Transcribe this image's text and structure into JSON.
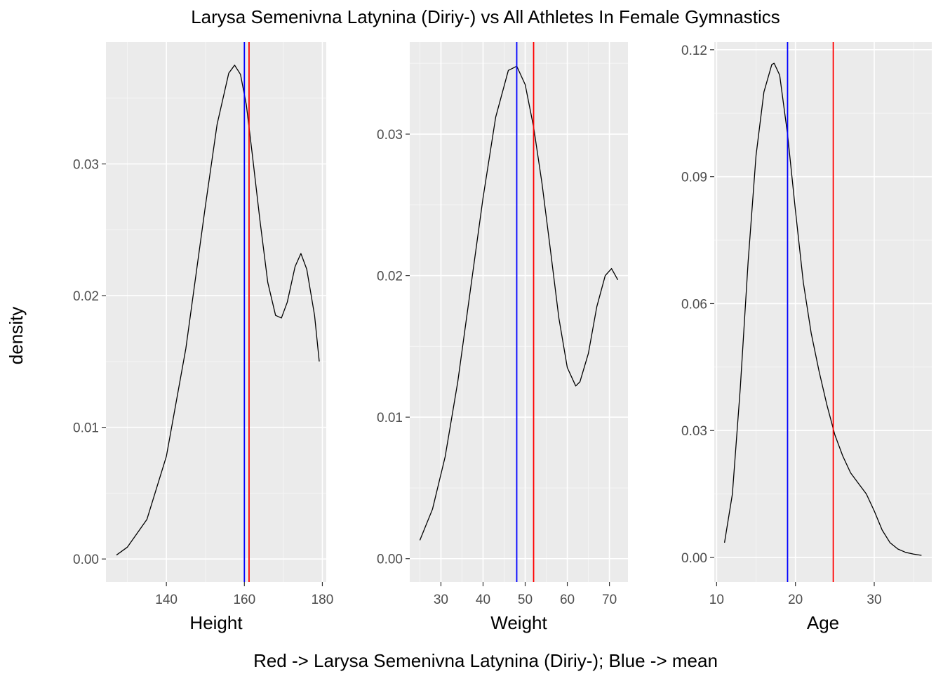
{
  "figure": {
    "title": "Larysa Semenivna Latynina (Diriy-) vs All Athletes In Female Gymnastics",
    "ylabel": "density",
    "caption": "Red -> Larysa Semenivna Latynina (Diriy-); Blue -> mean"
  },
  "colors": {
    "panel_background": "#ebebeb",
    "grid_major": "#ffffff",
    "grid_minor": "#f5f5f5",
    "density_line": "#000000",
    "athlete_line": "#ff0000",
    "mean_line": "#0000ff",
    "tick_text": "#4d4d4d"
  },
  "chart_data": [
    {
      "type": "line",
      "xlabel": "Height",
      "ylabel": "density",
      "xlim": [
        124.5,
        181
      ],
      "ylim": [
        -0.00175,
        0.03925
      ],
      "xticks": [
        140,
        160,
        180
      ],
      "yticks": [
        0,
        0.01,
        0.02,
        0.03
      ],
      "ytick_labels": [
        "0.00",
        "0.01",
        "0.02",
        "0.03"
      ],
      "grid": true,
      "athlete_value": 161.2,
      "mean_value": 160.0,
      "series": [
        {
          "x": [
            127.2,
            130,
            135,
            140,
            145,
            150,
            153,
            156,
            157.5,
            159,
            160.5,
            162,
            164,
            166,
            168,
            169.5,
            171,
            173,
            174.5,
            176,
            178,
            179.2
          ],
          "values": [
            0.0003,
            0.0009,
            0.003,
            0.0078,
            0.016,
            0.0268,
            0.033,
            0.0369,
            0.0375,
            0.0368,
            0.0345,
            0.0308,
            0.0257,
            0.021,
            0.0185,
            0.0183,
            0.0195,
            0.0222,
            0.0232,
            0.022,
            0.0185,
            0.015
          ]
        }
      ]
    },
    {
      "type": "line",
      "xlabel": "Weight",
      "ylabel": "density",
      "xlim": [
        22.6,
        74.4
      ],
      "ylim": [
        -0.00165,
        0.0365
      ],
      "xticks": [
        30,
        40,
        50,
        60,
        70
      ],
      "yticks": [
        0,
        0.01,
        0.02,
        0.03
      ],
      "ytick_labels": [
        "0.00",
        "0.01",
        "0.02",
        "0.03"
      ],
      "grid": true,
      "athlete_value": 52.0,
      "mean_value": 48.0,
      "series": [
        {
          "x": [
            25,
            28,
            31,
            34,
            37,
            40,
            43,
            46,
            48,
            50,
            52,
            54,
            56,
            58,
            60,
            62,
            63,
            65,
            67,
            69,
            70.5,
            72
          ],
          "values": [
            0.0013,
            0.0035,
            0.0072,
            0.0125,
            0.019,
            0.0255,
            0.0312,
            0.0345,
            0.0348,
            0.0335,
            0.0305,
            0.0265,
            0.0218,
            0.017,
            0.0135,
            0.0122,
            0.0125,
            0.0145,
            0.0178,
            0.02,
            0.0205,
            0.0197
          ]
        }
      ]
    },
    {
      "type": "line",
      "xlabel": "Age",
      "ylabel": "density",
      "xlim": [
        9.7,
        37.3
      ],
      "ylim": [
        -0.0058,
        0.1218
      ],
      "xticks": [
        10,
        20,
        30
      ],
      "yticks": [
        0,
        0.03,
        0.06,
        0.09,
        0.12
      ],
      "ytick_labels": [
        "0.00",
        "0.03",
        "0.06",
        "0.09",
        "0.12"
      ],
      "grid": true,
      "athlete_value": 24.8,
      "mean_value": 19.0,
      "series": [
        {
          "x": [
            11,
            12,
            13,
            14,
            15,
            16,
            17,
            17.3,
            18,
            19,
            20,
            21,
            22,
            23,
            24,
            25,
            26,
            27,
            28,
            29,
            30,
            31,
            32,
            33,
            34,
            35,
            36
          ],
          "values": [
            0.0035,
            0.015,
            0.04,
            0.07,
            0.095,
            0.11,
            0.1165,
            0.1168,
            0.114,
            0.1,
            0.082,
            0.065,
            0.053,
            0.044,
            0.036,
            0.029,
            0.024,
            0.02,
            0.0175,
            0.015,
            0.011,
            0.0065,
            0.0035,
            0.002,
            0.0012,
            0.0008,
            0.0005
          ]
        }
      ]
    }
  ]
}
